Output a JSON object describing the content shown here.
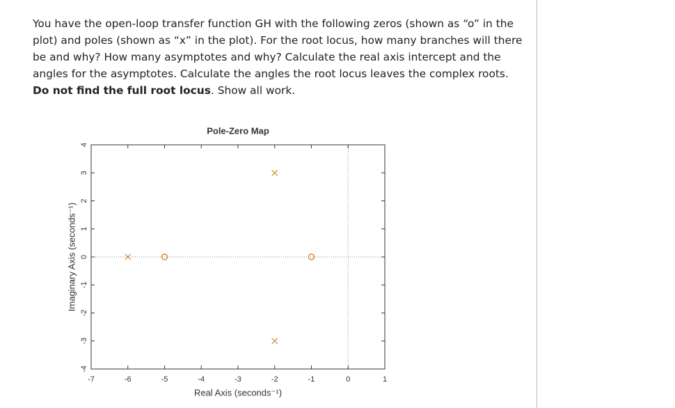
{
  "question": {
    "parts": [
      {
        "text": "You have the open-loop transfer function GH with the following zeros (shown as “o” in the plot) and poles (shown as “x” in the plot). For the root locus, how many branches will there be and why? How many asymptotes and why? Calculate the real axis intercept and the angles for the asymptotes. Calculate the angles the root locus leaves the complex roots. ",
        "bold": false
      },
      {
        "text": "Do not find the full root locus",
        "bold": true
      },
      {
        "text": ". Show all work.",
        "bold": false
      }
    ]
  },
  "chart_data": {
    "type": "scatter",
    "title": "Pole-Zero Map",
    "x_label": "Real Axis (seconds⁻¹)",
    "y_label": "Imaginary Axis (seconds⁻¹)",
    "xlim": [
      -7,
      1
    ],
    "ylim": [
      -4,
      4
    ],
    "xticks": [
      -7,
      -6,
      -5,
      -4,
      -3,
      -2,
      -1,
      0,
      1
    ],
    "yticks": [
      -4,
      -3,
      -2,
      -1,
      0,
      1,
      2,
      3,
      4
    ],
    "series": [
      {
        "marker": "x",
        "color": "#d9822b",
        "x": [
          -6,
          -2,
          -2
        ],
        "values": [
          0,
          3,
          -3
        ]
      },
      {
        "marker": "o",
        "color": "#d9822b",
        "x": [
          -5,
          -1
        ],
        "values": [
          0,
          0
        ]
      }
    ]
  }
}
